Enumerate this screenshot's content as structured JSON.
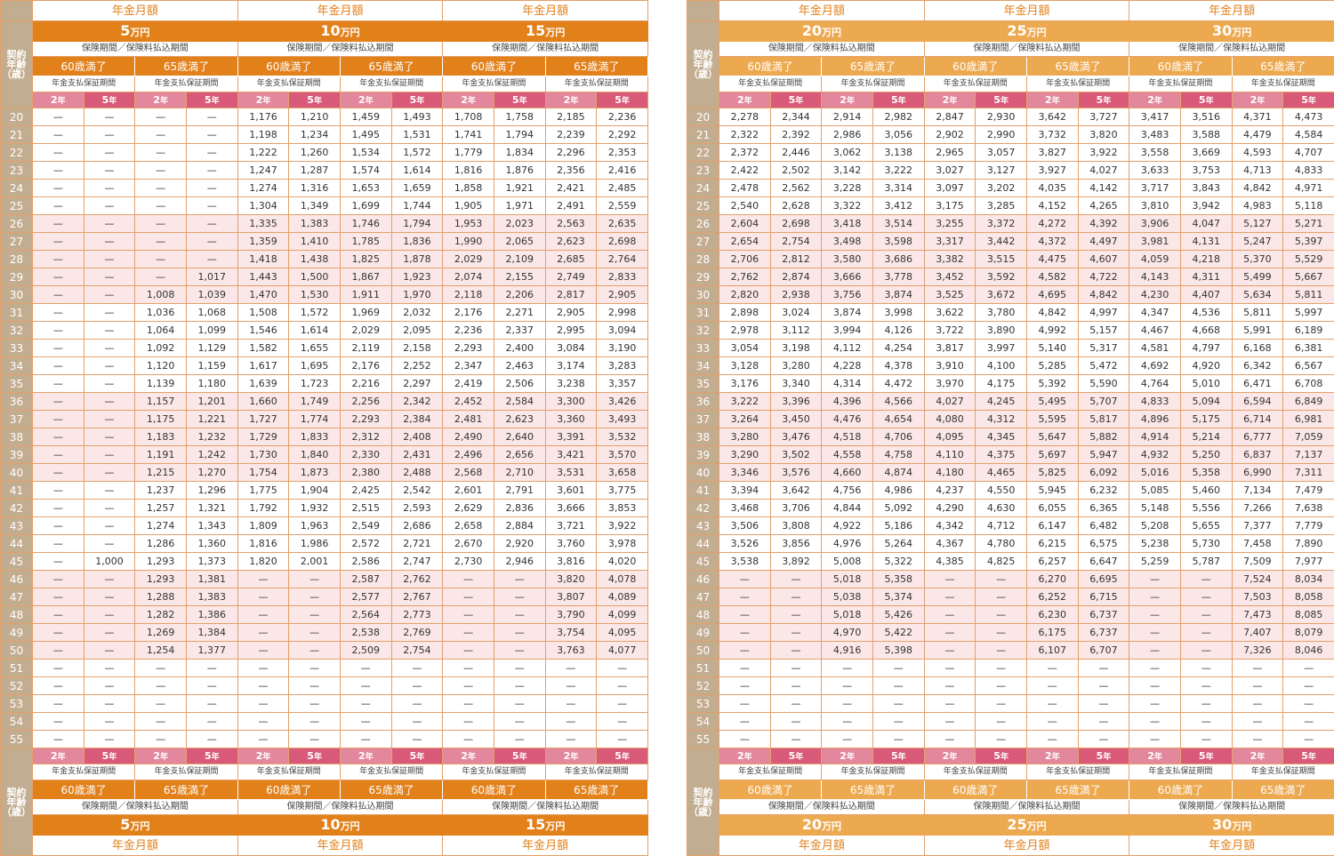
{
  "labels": {
    "monthly": "年金月額",
    "period": "保険期間／保険料払込期間",
    "guarantee": "年金支払保証期間",
    "age_header": "契約\n年齢\n（歳）",
    "mat60": "60歳満了",
    "mat65": "65歳満了",
    "yr2": "2",
    "yr5": "5",
    "year_unit": "年",
    "dash": "—",
    "yen_unit": "万円"
  },
  "left": {
    "amounts": [
      "5",
      "10",
      "15"
    ],
    "rows": [
      [
        "20",
        "—",
        "—",
        "—",
        "—",
        "1,176",
        "1,210",
        "1,459",
        "1,493",
        "1,708",
        "1,758",
        "2,185",
        "2,236"
      ],
      [
        "21",
        "—",
        "—",
        "—",
        "—",
        "1,198",
        "1,234",
        "1,495",
        "1,531",
        "1,741",
        "1,794",
        "2,239",
        "2,292"
      ],
      [
        "22",
        "—",
        "—",
        "—",
        "—",
        "1,222",
        "1,260",
        "1,534",
        "1,572",
        "1,779",
        "1,834",
        "2,296",
        "2,353"
      ],
      [
        "23",
        "—",
        "—",
        "—",
        "—",
        "1,247",
        "1,287",
        "1,574",
        "1,614",
        "1,816",
        "1,876",
        "2,356",
        "2,416"
      ],
      [
        "24",
        "—",
        "—",
        "—",
        "—",
        "1,274",
        "1,316",
        "1,653",
        "1,659",
        "1,858",
        "1,921",
        "2,421",
        "2,485"
      ],
      [
        "25",
        "—",
        "—",
        "—",
        "—",
        "1,304",
        "1,349",
        "1,699",
        "1,744",
        "1,905",
        "1,971",
        "2,491",
        "2,559"
      ],
      [
        "26",
        "—",
        "—",
        "—",
        "—",
        "1,335",
        "1,383",
        "1,746",
        "1,794",
        "1,953",
        "2,023",
        "2,563",
        "2,635"
      ],
      [
        "27",
        "—",
        "—",
        "—",
        "—",
        "1,359",
        "1,410",
        "1,785",
        "1,836",
        "1,990",
        "2,065",
        "2,623",
        "2,698"
      ],
      [
        "28",
        "—",
        "—",
        "—",
        "—",
        "1,418",
        "1,438",
        "1,825",
        "1,878",
        "2,029",
        "2,109",
        "2,685",
        "2,764"
      ],
      [
        "29",
        "—",
        "—",
        "—",
        "1,017",
        "1,443",
        "1,500",
        "1,867",
        "1,923",
        "2,074",
        "2,155",
        "2,749",
        "2,833"
      ],
      [
        "30",
        "—",
        "—",
        "1,008",
        "1,039",
        "1,470",
        "1,530",
        "1,911",
        "1,970",
        "2,118",
        "2,206",
        "2,817",
        "2,905"
      ],
      [
        "31",
        "—",
        "—",
        "1,036",
        "1,068",
        "1,508",
        "1,572",
        "1,969",
        "2,032",
        "2,176",
        "2,271",
        "2,905",
        "2,998"
      ],
      [
        "32",
        "—",
        "—",
        "1,064",
        "1,099",
        "1,546",
        "1,614",
        "2,029",
        "2,095",
        "2,236",
        "2,337",
        "2,995",
        "3,094"
      ],
      [
        "33",
        "—",
        "—",
        "1,092",
        "1,129",
        "1,582",
        "1,655",
        "2,119",
        "2,158",
        "2,293",
        "2,400",
        "3,084",
        "3,190"
      ],
      [
        "34",
        "—",
        "—",
        "1,120",
        "1,159",
        "1,617",
        "1,695",
        "2,176",
        "2,252",
        "2,347",
        "2,463",
        "3,174",
        "3,283"
      ],
      [
        "35",
        "—",
        "—",
        "1,139",
        "1,180",
        "1,639",
        "1,723",
        "2,216",
        "2,297",
        "2,419",
        "2,506",
        "3,238",
        "3,357"
      ],
      [
        "36",
        "—",
        "—",
        "1,157",
        "1,201",
        "1,660",
        "1,749",
        "2,256",
        "2,342",
        "2,452",
        "2,584",
        "3,300",
        "3,426"
      ],
      [
        "37",
        "—",
        "—",
        "1,175",
        "1,221",
        "1,727",
        "1,774",
        "2,293",
        "2,384",
        "2,481",
        "2,623",
        "3,360",
        "3,493"
      ],
      [
        "38",
        "—",
        "—",
        "1,183",
        "1,232",
        "1,729",
        "1,833",
        "2,312",
        "2,408",
        "2,490",
        "2,640",
        "3,391",
        "3,532"
      ],
      [
        "39",
        "—",
        "—",
        "1,191",
        "1,242",
        "1,730",
        "1,840",
        "2,330",
        "2,431",
        "2,496",
        "2,656",
        "3,421",
        "3,570"
      ],
      [
        "40",
        "—",
        "—",
        "1,215",
        "1,270",
        "1,754",
        "1,873",
        "2,380",
        "2,488",
        "2,568",
        "2,710",
        "3,531",
        "3,658"
      ],
      [
        "41",
        "—",
        "—",
        "1,237",
        "1,296",
        "1,775",
        "1,904",
        "2,425",
        "2,542",
        "2,601",
        "2,791",
        "3,601",
        "3,775"
      ],
      [
        "42",
        "—",
        "—",
        "1,257",
        "1,321",
        "1,792",
        "1,932",
        "2,515",
        "2,593",
        "2,629",
        "2,836",
        "3,666",
        "3,853"
      ],
      [
        "43",
        "—",
        "—",
        "1,274",
        "1,343",
        "1,809",
        "1,963",
        "2,549",
        "2,686",
        "2,658",
        "2,884",
        "3,721",
        "3,922"
      ],
      [
        "44",
        "—",
        "—",
        "1,286",
        "1,360",
        "1,816",
        "1,986",
        "2,572",
        "2,721",
        "2,670",
        "2,920",
        "3,760",
        "3,978"
      ],
      [
        "45",
        "—",
        "1,000",
        "1,293",
        "1,373",
        "1,820",
        "2,001",
        "2,586",
        "2,747",
        "2,730",
        "2,946",
        "3,816",
        "4,020"
      ],
      [
        "46",
        "—",
        "—",
        "1,293",
        "1,381",
        "—",
        "—",
        "2,587",
        "2,762",
        "—",
        "—",
        "3,820",
        "4,078"
      ],
      [
        "47",
        "—",
        "—",
        "1,288",
        "1,383",
        "—",
        "—",
        "2,577",
        "2,767",
        "—",
        "—",
        "3,807",
        "4,089"
      ],
      [
        "48",
        "—",
        "—",
        "1,282",
        "1,386",
        "—",
        "—",
        "2,564",
        "2,773",
        "—",
        "—",
        "3,790",
        "4,099"
      ],
      [
        "49",
        "—",
        "—",
        "1,269",
        "1,384",
        "—",
        "—",
        "2,538",
        "2,769",
        "—",
        "—",
        "3,754",
        "4,095"
      ],
      [
        "50",
        "—",
        "—",
        "1,254",
        "1,377",
        "—",
        "—",
        "2,509",
        "2,754",
        "—",
        "—",
        "3,763",
        "4,077"
      ],
      [
        "51",
        "—",
        "—",
        "—",
        "—",
        "—",
        "—",
        "—",
        "—",
        "—",
        "—",
        "—",
        "—"
      ],
      [
        "52",
        "—",
        "—",
        "—",
        "—",
        "—",
        "—",
        "—",
        "—",
        "—",
        "—",
        "—",
        "—"
      ],
      [
        "53",
        "—",
        "—",
        "—",
        "—",
        "—",
        "—",
        "—",
        "—",
        "—",
        "—",
        "—",
        "—"
      ],
      [
        "54",
        "—",
        "—",
        "—",
        "—",
        "—",
        "—",
        "—",
        "—",
        "—",
        "—",
        "—",
        "—"
      ],
      [
        "55",
        "—",
        "—",
        "—",
        "—",
        "—",
        "—",
        "—",
        "—",
        "—",
        "—",
        "—",
        "—"
      ]
    ]
  },
  "right": {
    "amounts": [
      "20",
      "25",
      "30"
    ],
    "rows": [
      [
        "20",
        "2,278",
        "2,344",
        "2,914",
        "2,982",
        "2,847",
        "2,930",
        "3,642",
        "3,727",
        "3,417",
        "3,516",
        "4,371",
        "4,473"
      ],
      [
        "21",
        "2,322",
        "2,392",
        "2,986",
        "3,056",
        "2,902",
        "2,990",
        "3,732",
        "3,820",
        "3,483",
        "3,588",
        "4,479",
        "4,584"
      ],
      [
        "22",
        "2,372",
        "2,446",
        "3,062",
        "3,138",
        "2,965",
        "3,057",
        "3,827",
        "3,922",
        "3,558",
        "3,669",
        "4,593",
        "4,707"
      ],
      [
        "23",
        "2,422",
        "2,502",
        "3,142",
        "3,222",
        "3,027",
        "3,127",
        "3,927",
        "4,027",
        "3,633",
        "3,753",
        "4,713",
        "4,833"
      ],
      [
        "24",
        "2,478",
        "2,562",
        "3,228",
        "3,314",
        "3,097",
        "3,202",
        "4,035",
        "4,142",
        "3,717",
        "3,843",
        "4,842",
        "4,971"
      ],
      [
        "25",
        "2,540",
        "2,628",
        "3,322",
        "3,412",
        "3,175",
        "3,285",
        "4,152",
        "4,265",
        "3,810",
        "3,942",
        "4,983",
        "5,118"
      ],
      [
        "26",
        "2,604",
        "2,698",
        "3,418",
        "3,514",
        "3,255",
        "3,372",
        "4,272",
        "4,392",
        "3,906",
        "4,047",
        "5,127",
        "5,271"
      ],
      [
        "27",
        "2,654",
        "2,754",
        "3,498",
        "3,598",
        "3,317",
        "3,442",
        "4,372",
        "4,497",
        "3,981",
        "4,131",
        "5,247",
        "5,397"
      ],
      [
        "28",
        "2,706",
        "2,812",
        "3,580",
        "3,686",
        "3,382",
        "3,515",
        "4,475",
        "4,607",
        "4,059",
        "4,218",
        "5,370",
        "5,529"
      ],
      [
        "29",
        "2,762",
        "2,874",
        "3,666",
        "3,778",
        "3,452",
        "3,592",
        "4,582",
        "4,722",
        "4,143",
        "4,311",
        "5,499",
        "5,667"
      ],
      [
        "30",
        "2,820",
        "2,938",
        "3,756",
        "3,874",
        "3,525",
        "3,672",
        "4,695",
        "4,842",
        "4,230",
        "4,407",
        "5,634",
        "5,811"
      ],
      [
        "31",
        "2,898",
        "3,024",
        "3,874",
        "3,998",
        "3,622",
        "3,780",
        "4,842",
        "4,997",
        "4,347",
        "4,536",
        "5,811",
        "5,997"
      ],
      [
        "32",
        "2,978",
        "3,112",
        "3,994",
        "4,126",
        "3,722",
        "3,890",
        "4,992",
        "5,157",
        "4,467",
        "4,668",
        "5,991",
        "6,189"
      ],
      [
        "33",
        "3,054",
        "3,198",
        "4,112",
        "4,254",
        "3,817",
        "3,997",
        "5,140",
        "5,317",
        "4,581",
        "4,797",
        "6,168",
        "6,381"
      ],
      [
        "34",
        "3,128",
        "3,280",
        "4,228",
        "4,378",
        "3,910",
        "4,100",
        "5,285",
        "5,472",
        "4,692",
        "4,920",
        "6,342",
        "6,567"
      ],
      [
        "35",
        "3,176",
        "3,340",
        "4,314",
        "4,472",
        "3,970",
        "4,175",
        "5,392",
        "5,590",
        "4,764",
        "5,010",
        "6,471",
        "6,708"
      ],
      [
        "36",
        "3,222",
        "3,396",
        "4,396",
        "4,566",
        "4,027",
        "4,245",
        "5,495",
        "5,707",
        "4,833",
        "5,094",
        "6,594",
        "6,849"
      ],
      [
        "37",
        "3,264",
        "3,450",
        "4,476",
        "4,654",
        "4,080",
        "4,312",
        "5,595",
        "5,817",
        "4,896",
        "5,175",
        "6,714",
        "6,981"
      ],
      [
        "38",
        "3,280",
        "3,476",
        "4,518",
        "4,706",
        "4,095",
        "4,345",
        "5,647",
        "5,882",
        "4,914",
        "5,214",
        "6,777",
        "7,059"
      ],
      [
        "39",
        "3,290",
        "3,502",
        "4,558",
        "4,758",
        "4,110",
        "4,375",
        "5,697",
        "5,947",
        "4,932",
        "5,250",
        "6,837",
        "7,137"
      ],
      [
        "40",
        "3,346",
        "3,576",
        "4,660",
        "4,874",
        "4,180",
        "4,465",
        "5,825",
        "6,092",
        "5,016",
        "5,358",
        "6,990",
        "7,311"
      ],
      [
        "41",
        "3,394",
        "3,642",
        "4,756",
        "4,986",
        "4,237",
        "4,550",
        "5,945",
        "6,232",
        "5,085",
        "5,460",
        "7,134",
        "7,479"
      ],
      [
        "42",
        "3,468",
        "3,706",
        "4,844",
        "5,092",
        "4,290",
        "4,630",
        "6,055",
        "6,365",
        "5,148",
        "5,556",
        "7,266",
        "7,638"
      ],
      [
        "43",
        "3,506",
        "3,808",
        "4,922",
        "5,186",
        "4,342",
        "4,712",
        "6,147",
        "6,482",
        "5,208",
        "5,655",
        "7,377",
        "7,779"
      ],
      [
        "44",
        "3,526",
        "3,856",
        "4,976",
        "5,264",
        "4,367",
        "4,780",
        "6,215",
        "6,575",
        "5,238",
        "5,730",
        "7,458",
        "7,890"
      ],
      [
        "45",
        "3,538",
        "3,892",
        "5,008",
        "5,322",
        "4,385",
        "4,825",
        "6,257",
        "6,647",
        "5,259",
        "5,787",
        "7,509",
        "7,977"
      ],
      [
        "46",
        "—",
        "—",
        "5,018",
        "5,358",
        "—",
        "—",
        "6,270",
        "6,695",
        "—",
        "—",
        "7,524",
        "8,034"
      ],
      [
        "47",
        "—",
        "—",
        "5,038",
        "5,374",
        "—",
        "—",
        "6,252",
        "6,715",
        "—",
        "—",
        "7,503",
        "8,058"
      ],
      [
        "48",
        "—",
        "—",
        "5,018",
        "5,426",
        "—",
        "—",
        "6,230",
        "6,737",
        "—",
        "—",
        "7,473",
        "8,085"
      ],
      [
        "49",
        "—",
        "—",
        "4,970",
        "5,422",
        "—",
        "—",
        "6,175",
        "6,737",
        "—",
        "—",
        "7,407",
        "8,079"
      ],
      [
        "50",
        "—",
        "—",
        "4,916",
        "5,398",
        "—",
        "—",
        "6,107",
        "6,707",
        "—",
        "—",
        "7,326",
        "8,046"
      ],
      [
        "51",
        "—",
        "—",
        "—",
        "—",
        "—",
        "—",
        "—",
        "—",
        "—",
        "—",
        "—",
        "—"
      ],
      [
        "52",
        "—",
        "—",
        "—",
        "—",
        "—",
        "—",
        "—",
        "—",
        "—",
        "—",
        "—",
        "—"
      ],
      [
        "53",
        "—",
        "—",
        "—",
        "—",
        "—",
        "—",
        "—",
        "—",
        "—",
        "—",
        "—",
        "—"
      ],
      [
        "54",
        "—",
        "—",
        "—",
        "—",
        "—",
        "—",
        "—",
        "—",
        "—",
        "—",
        "—",
        "—"
      ],
      [
        "55",
        "—",
        "—",
        "—",
        "—",
        "—",
        "—",
        "—",
        "—",
        "—",
        "—",
        "—",
        "—"
      ]
    ]
  }
}
